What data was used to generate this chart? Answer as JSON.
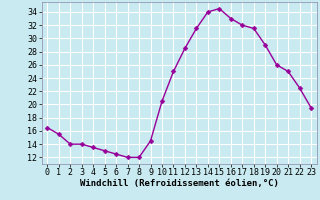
{
  "x": [
    0,
    1,
    2,
    3,
    4,
    5,
    6,
    7,
    8,
    9,
    10,
    11,
    12,
    13,
    14,
    15,
    16,
    17,
    18,
    19,
    20,
    21,
    22,
    23
  ],
  "y": [
    16.5,
    15.5,
    14.0,
    14.0,
    13.5,
    13.0,
    12.5,
    12.0,
    12.0,
    14.5,
    20.5,
    25.0,
    28.5,
    31.5,
    34.0,
    34.5,
    33.0,
    32.0,
    31.5,
    29.0,
    26.0,
    25.0,
    22.5,
    19.5
  ],
  "line_color": "#990099",
  "marker_color": "#990099",
  "bg_color": "#c8eaf0",
  "grid_color": "#ffffff",
  "xlabel": "Windchill (Refroidissement éolien,°C)",
  "xlim": [
    -0.5,
    23.5
  ],
  "ylim": [
    11,
    35.5
  ],
  "yticks": [
    12,
    14,
    16,
    18,
    20,
    22,
    24,
    26,
    28,
    30,
    32,
    34
  ],
  "xticks": [
    0,
    1,
    2,
    3,
    4,
    5,
    6,
    7,
    8,
    9,
    10,
    11,
    12,
    13,
    14,
    15,
    16,
    17,
    18,
    19,
    20,
    21,
    22,
    23
  ],
  "xlabel_fontsize": 6.5,
  "tick_fontsize": 6.0,
  "line_width": 1.0,
  "marker_size": 2.5
}
